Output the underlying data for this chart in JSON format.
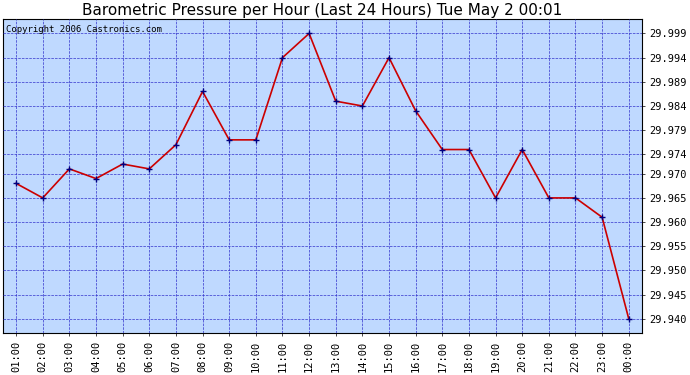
{
  "title": "Barometric Pressure per Hour (Last 24 Hours) Tue May 2 00:01",
  "copyright": "Copyright 2006 Castronics.com",
  "x_labels": [
    "01:00",
    "02:00",
    "03:00",
    "04:00",
    "05:00",
    "06:00",
    "07:00",
    "08:00",
    "09:00",
    "10:00",
    "11:00",
    "12:00",
    "13:00",
    "14:00",
    "15:00",
    "16:00",
    "17:00",
    "18:00",
    "19:00",
    "20:00",
    "21:00",
    "22:00",
    "23:00",
    "00:00"
  ],
  "pressure_values": [
    29.968,
    29.965,
    29.971,
    29.969,
    29.972,
    29.971,
    29.976,
    29.987,
    29.977,
    29.977,
    29.994,
    29.999,
    29.985,
    29.984,
    29.994,
    29.983,
    29.975,
    29.975,
    29.965,
    29.975,
    29.965,
    29.965,
    29.961,
    29.94
  ],
  "ytick_vals": [
    29.94,
    29.945,
    29.95,
    29.955,
    29.96,
    29.965,
    29.97,
    29.974,
    29.979,
    29.984,
    29.989,
    29.994,
    29.999
  ],
  "ytick_labels": [
    "29.940",
    "29.945",
    "29.950",
    "29.955",
    "29.960",
    "29.965",
    "29.970",
    "29.974",
    "29.979",
    "29.984",
    "29.989",
    "29.994",
    "29.999"
  ],
  "ylim_min": 29.937,
  "ylim_max": 30.002,
  "line_color": "#cc0000",
  "marker_color": "#000080",
  "bg_color": "#bfd9ff",
  "fig_bg_color": "#ffffff",
  "grid_color": "#3333cc",
  "border_color": "#000000",
  "title_fontsize": 11,
  "tick_fontsize": 7.5,
  "copyright_fontsize": 6.5
}
